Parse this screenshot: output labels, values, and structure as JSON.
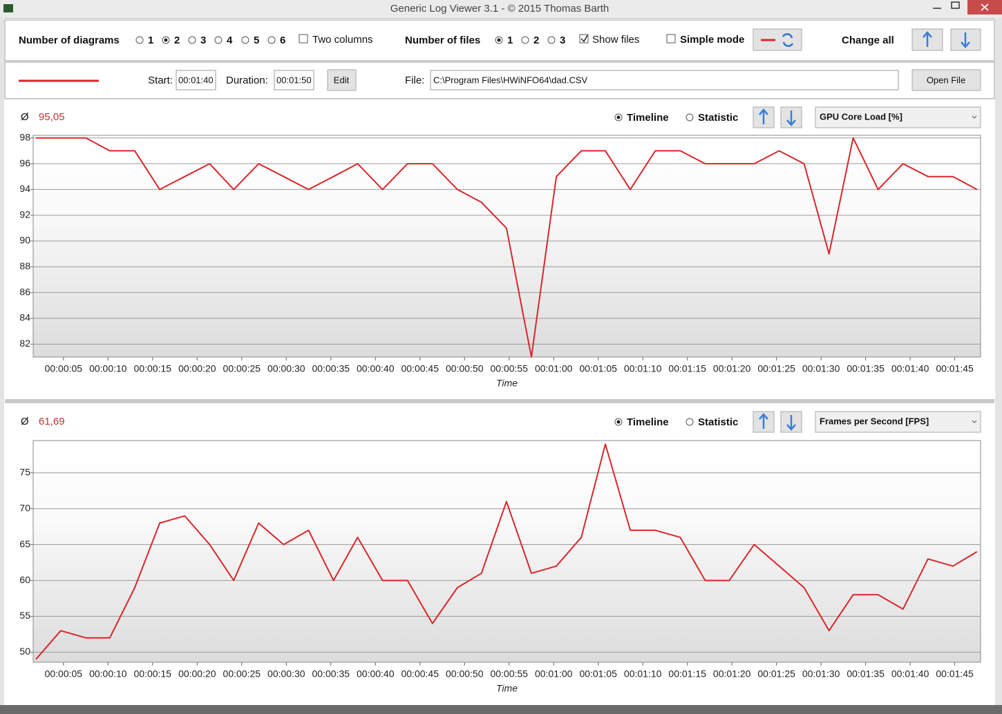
{
  "window": {
    "title": "Generic Log Viewer 3.1 - © 2015 Thomas Barth"
  },
  "toolbar": {
    "diagrams_label": "Number of diagrams",
    "diagram_options": [
      "1",
      "2",
      "3",
      "4",
      "5",
      "6"
    ],
    "two_columns": "Two columns",
    "files_label": "Number of files",
    "file_options": [
      "1",
      "2",
      "3"
    ],
    "show_files": "Show files",
    "simple_mode": "Simple mode",
    "change_all": "Change all"
  },
  "file_bar": {
    "start_label": "Start:",
    "start": "00:01:40",
    "duration_label": "Duration:",
    "duration": "00:01:50",
    "edit": "Edit",
    "file_label": "File:",
    "file": "C:\\Program Files\\HWiNFO64\\dad.CSV",
    "open_file": "Open File"
  },
  "chart_data": [
    {
      "type": "line",
      "average_symbol": "Ø",
      "average": "95,05",
      "mode_options": [
        "Timeline",
        "Statistic"
      ],
      "selector": "GPU Core Load [%]",
      "x_label": "Time",
      "x": [
        1.9,
        4.7,
        7.5,
        10.2,
        13.0,
        15.8,
        18.6,
        21.4,
        24.1,
        26.9,
        29.7,
        32.5,
        35.3,
        38.0,
        40.8,
        43.6,
        46.4,
        49.2,
        51.9,
        54.7,
        57.5,
        60.3,
        63.1,
        65.8,
        68.6,
        71.4,
        74.2,
        77.0,
        79.7,
        82.5,
        85.3,
        88.1,
        90.9,
        93.6,
        96.4,
        99.2,
        102.0,
        104.8,
        107.5
      ],
      "xlim": [
        1.6,
        107.9
      ],
      "xticks": [
        {
          "value": 5,
          "label": "00:00:05"
        },
        {
          "value": 10,
          "label": "00:00:10"
        },
        {
          "value": 15,
          "label": "00:00:15"
        },
        {
          "value": 20,
          "label": "00:00:20"
        },
        {
          "value": 25,
          "label": "00:00:25"
        },
        {
          "value": 30,
          "label": "00:00:30"
        },
        {
          "value": 35,
          "label": "00:00:35"
        },
        {
          "value": 40,
          "label": "00:00:40"
        },
        {
          "value": 45,
          "label": "00:00:45"
        },
        {
          "value": 50,
          "label": "00:00:50"
        },
        {
          "value": 55,
          "label": "00:00:55"
        },
        {
          "value": 60,
          "label": "00:01:00"
        },
        {
          "value": 65,
          "label": "00:01:05"
        },
        {
          "value": 70,
          "label": "00:01:10"
        },
        {
          "value": 75,
          "label": "00:01:15"
        },
        {
          "value": 80,
          "label": "00:01:20"
        },
        {
          "value": 85,
          "label": "00:01:25"
        },
        {
          "value": 90,
          "label": "00:01:30"
        },
        {
          "value": 95,
          "label": "00:01:35"
        },
        {
          "value": 100,
          "label": "00:01:40"
        },
        {
          "value": 105,
          "label": "00:01:45"
        }
      ],
      "series": [
        {
          "color": "#d9262a",
          "values": [
            98,
            98,
            98,
            97,
            97,
            94,
            95,
            96,
            94,
            96,
            95,
            94,
            95,
            96,
            94,
            96,
            96,
            94,
            93,
            91,
            81,
            95,
            97,
            97,
            94,
            97,
            97,
            96,
            96,
            96,
            97,
            96,
            89,
            98,
            94,
            96,
            95,
            95,
            94
          ]
        }
      ],
      "ylim": [
        81,
        98.2
      ],
      "yticks": [
        82,
        84,
        86,
        88,
        90,
        92,
        94,
        96,
        98
      ],
      "grid": true
    },
    {
      "type": "line",
      "average_symbol": "Ø",
      "average": "61,69",
      "mode_options": [
        "Timeline",
        "Statistic"
      ],
      "selector": "Frames per Second [FPS]",
      "x_label": "Time",
      "x": [
        1.9,
        4.7,
        7.5,
        10.2,
        13.0,
        15.8,
        18.6,
        21.4,
        24.1,
        26.9,
        29.7,
        32.5,
        35.3,
        38.0,
        40.8,
        43.6,
        46.4,
        49.2,
        51.9,
        54.7,
        57.5,
        60.3,
        63.1,
        65.8,
        68.6,
        71.4,
        74.2,
        77.0,
        79.7,
        82.5,
        85.3,
        88.1,
        90.9,
        93.6,
        96.4,
        99.2,
        102.0,
        104.8,
        107.5
      ],
      "xlim": [
        1.6,
        107.9
      ],
      "xticks": [
        {
          "value": 5,
          "label": "00:00:05"
        },
        {
          "value": 10,
          "label": "00:00:10"
        },
        {
          "value": 15,
          "label": "00:00:15"
        },
        {
          "value": 20,
          "label": "00:00:20"
        },
        {
          "value": 25,
          "label": "00:00:25"
        },
        {
          "value": 30,
          "label": "00:00:30"
        },
        {
          "value": 35,
          "label": "00:00:35"
        },
        {
          "value": 40,
          "label": "00:00:40"
        },
        {
          "value": 45,
          "label": "00:00:45"
        },
        {
          "value": 50,
          "label": "00:00:50"
        },
        {
          "value": 55,
          "label": "00:00:55"
        },
        {
          "value": 60,
          "label": "00:01:00"
        },
        {
          "value": 65,
          "label": "00:01:05"
        },
        {
          "value": 70,
          "label": "00:01:10"
        },
        {
          "value": 75,
          "label": "00:01:15"
        },
        {
          "value": 80,
          "label": "00:01:20"
        },
        {
          "value": 85,
          "label": "00:01:25"
        },
        {
          "value": 90,
          "label": "00:01:30"
        },
        {
          "value": 95,
          "label": "00:01:35"
        },
        {
          "value": 100,
          "label": "00:01:40"
        },
        {
          "value": 105,
          "label": "00:01:45"
        }
      ],
      "series": [
        {
          "color": "#d9262a",
          "values": [
            49,
            53,
            52,
            52,
            59,
            68,
            69,
            65,
            60,
            68,
            65,
            67,
            60,
            66,
            60,
            60,
            54,
            59,
            61,
            71,
            61,
            62,
            66,
            79,
            67,
            67,
            66,
            60,
            60,
            65,
            62,
            59,
            53,
            58,
            58,
            56,
            63,
            62,
            64
          ]
        }
      ],
      "ylim": [
        48.6,
        79.5
      ],
      "yticks": [
        50,
        55,
        60,
        65,
        70,
        75
      ],
      "grid": true
    }
  ]
}
